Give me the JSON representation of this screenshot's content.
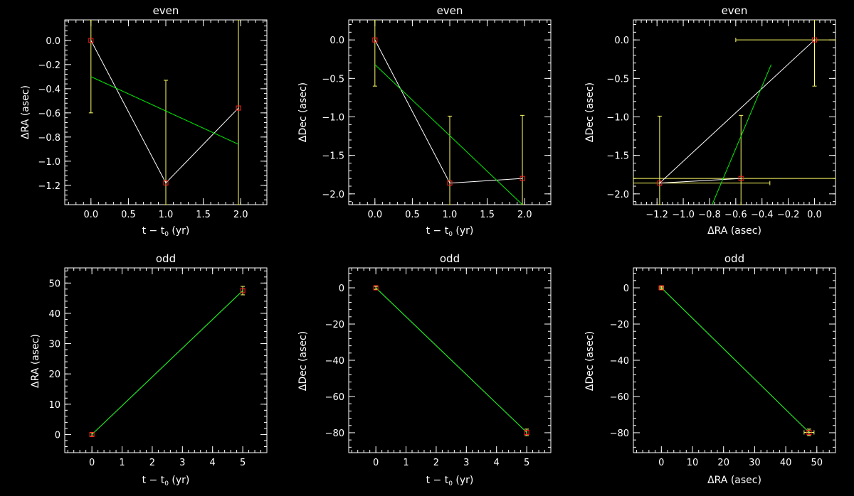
{
  "chart_data": [
    {
      "type": "line",
      "title": "even",
      "xlabel": "t − t",
      "xlabel_sub": "0",
      "xlabel_unit": " (yr)",
      "ylabel": "ΔRA (asec)",
      "xlim": [
        -0.35,
        2.35
      ],
      "ylim": [
        -1.36,
        0.17
      ],
      "xticks": [
        0.0,
        0.5,
        1.0,
        1.5,
        2.0
      ],
      "xticklabels": [
        "0.0",
        "0.5",
        "1.0",
        "1.5",
        "2.0"
      ],
      "yticks": [
        -1.2,
        -1.0,
        -0.8,
        -0.6,
        -0.4,
        -0.2,
        0.0
      ],
      "yticklabels": [
        "−1.2",
        "−1.0",
        "−0.8",
        "−0.6",
        "−0.4",
        "−0.2",
        "0.0"
      ],
      "points": {
        "x": [
          0.0,
          1.0,
          1.97
        ],
        "y": [
          0.0,
          -1.18,
          -0.56
        ],
        "color": "#ff2020"
      },
      "errorbars": [
        {
          "x": 0.0,
          "ylo": -0.6,
          "yhi": 0.17
        },
        {
          "x": 1.0,
          "ylo": -1.36,
          "yhi": -0.33
        },
        {
          "x": 1.97,
          "ylo": -1.36,
          "yhi": 0.17
        }
      ],
      "xerrorbars": [],
      "data_line": {
        "x": [
          0.0,
          1.0,
          1.97
        ],
        "y": [
          0.0,
          -1.18,
          -0.56
        ],
        "color": "#ffffff"
      },
      "fit_line": {
        "x": [
          0.0,
          1.97
        ],
        "y": [
          -0.3,
          -0.86
        ],
        "color": "#00ee00"
      },
      "extra_lines": []
    },
    {
      "type": "line",
      "title": "even",
      "xlabel": "t − t",
      "xlabel_sub": "0",
      "xlabel_unit": " (yr)",
      "ylabel": "ΔDec (asec)",
      "xlim": [
        -0.35,
        2.35
      ],
      "ylim": [
        -2.14,
        0.26
      ],
      "xticks": [
        0.0,
        0.5,
        1.0,
        1.5,
        2.0
      ],
      "xticklabels": [
        "0.0",
        "0.5",
        "1.0",
        "1.5",
        "2.0"
      ],
      "yticks": [
        -2.0,
        -1.5,
        -1.0,
        -0.5,
        0.0
      ],
      "yticklabels": [
        "−2.0",
        "−1.5",
        "−1.0",
        "−0.5",
        "0.0"
      ],
      "points": {
        "x": [
          0.0,
          1.0,
          1.97
        ],
        "y": [
          0.0,
          -1.86,
          -1.8
        ],
        "color": "#ff2020"
      },
      "errorbars": [
        {
          "x": 0.0,
          "ylo": -0.6,
          "yhi": 0.26
        },
        {
          "x": 1.0,
          "ylo": -2.14,
          "yhi": -0.99
        },
        {
          "x": 1.97,
          "ylo": -2.14,
          "yhi": -0.98
        }
      ],
      "xerrorbars": [],
      "data_line": {
        "x": [
          0.0,
          1.0,
          1.97
        ],
        "y": [
          0.0,
          -1.86,
          -1.8
        ],
        "color": "#ffffff"
      },
      "fit_line": {
        "x": [
          0.0,
          1.97
        ],
        "y": [
          -0.32,
          -2.14
        ],
        "color": "#00ee00"
      },
      "extra_lines": []
    },
    {
      "type": "scatter",
      "title": "even",
      "xlabel": "ΔRA (asec)",
      "xlabel_sub": "",
      "xlabel_unit": "",
      "ylabel": "ΔDec (asec)",
      "xlim": [
        -1.38,
        0.16
      ],
      "ylim": [
        -2.14,
        0.26
      ],
      "xticks": [
        -1.2,
        -1.0,
        -0.8,
        -0.6,
        -0.4,
        -0.2,
        0.0
      ],
      "xticklabels": [
        "−1.2",
        "−1.0",
        "−0.8",
        "−0.6",
        "−0.4",
        "−0.2",
        "0.0"
      ],
      "yticks": [
        -2.0,
        -1.5,
        -1.0,
        -0.5,
        0.0
      ],
      "yticklabels": [
        "−2.0",
        "−1.5",
        "−1.0",
        "−0.5",
        "0.0"
      ],
      "points": {
        "x": [
          0.0,
          -1.18,
          -0.56
        ],
        "y": [
          0.0,
          -1.86,
          -1.8
        ],
        "color": "#ff2020"
      },
      "errorbars": [
        {
          "x": 0.0,
          "ylo": -0.6,
          "yhi": 0.26
        },
        {
          "x": -1.18,
          "ylo": -2.14,
          "yhi": -0.99
        },
        {
          "x": -0.56,
          "ylo": -2.14,
          "yhi": -0.98
        }
      ],
      "xerrorbars": [
        {
          "y": 0.0,
          "xlo": -0.6,
          "xhi": 0.16
        },
        {
          "y": -1.86,
          "xlo": -1.38,
          "xhi": -0.34
        },
        {
          "y": -1.8,
          "xlo": -1.38,
          "xhi": 0.16
        }
      ],
      "data_line": {
        "x": [
          0.0,
          -1.18,
          -0.56
        ],
        "y": [
          0.0,
          -1.86,
          -1.8
        ],
        "color": "#ffffff"
      },
      "fit_line": {
        "x": [
          -0.78,
          -0.33
        ],
        "y": [
          -2.14,
          -0.32
        ],
        "color": "#00ee00"
      },
      "extra_lines": []
    },
    {
      "type": "line",
      "title": "odd",
      "xlabel": "t − t",
      "xlabel_sub": "0",
      "xlabel_unit": " (yr)",
      "ylabel": "ΔRA (asec)",
      "xlim": [
        -0.9,
        5.8
      ],
      "ylim": [
        -6,
        55
      ],
      "xticks": [
        0,
        1,
        2,
        3,
        4,
        5
      ],
      "xticklabels": [
        "0",
        "1",
        "2",
        "3",
        "4",
        "5"
      ],
      "yticks": [
        0,
        10,
        20,
        30,
        40,
        50
      ],
      "yticklabels": [
        "0",
        "10",
        "20",
        "30",
        "40",
        "50"
      ],
      "points": {
        "x": [
          0,
          5
        ],
        "y": [
          0,
          47.5
        ],
        "color": "#ff2020"
      },
      "errorbars": [
        {
          "x": 0,
          "ylo": -0.6,
          "yhi": 0.6
        },
        {
          "x": 5,
          "ylo": 46.1,
          "yhi": 48.9
        }
      ],
      "xerrorbars": [],
      "data_line": {
        "x": [
          0,
          5
        ],
        "y": [
          0,
          47.5
        ],
        "color": "#ffffff"
      },
      "fit_line": {
        "x": [
          0,
          5
        ],
        "y": [
          0,
          47.5
        ],
        "color": "#00ee00"
      },
      "extra_lines": []
    },
    {
      "type": "line",
      "title": "odd",
      "xlabel": "t − t",
      "xlabel_sub": "0",
      "xlabel_unit": " (yr)",
      "ylabel": "ΔDec (asec)",
      "xlim": [
        -0.9,
        5.8
      ],
      "ylim": [
        -91,
        11
      ],
      "xticks": [
        0,
        1,
        2,
        3,
        4,
        5
      ],
      "xticklabels": [
        "0",
        "1",
        "2",
        "3",
        "4",
        "5"
      ],
      "yticks": [
        -80,
        -60,
        -40,
        -20,
        0
      ],
      "yticklabels": [
        "−80",
        "−60",
        "−40",
        "−20",
        "0"
      ],
      "points": {
        "x": [
          0,
          5
        ],
        "y": [
          0,
          -79.8
        ],
        "color": "#ff2020"
      },
      "errorbars": [
        {
          "x": 0,
          "ylo": -0.8,
          "yhi": 0.8
        },
        {
          "x": 5,
          "ylo": -81.6,
          "yhi": -78
        }
      ],
      "xerrorbars": [],
      "data_line": {
        "x": [
          0,
          5
        ],
        "y": [
          0,
          -79.8
        ],
        "color": "#ffffff"
      },
      "fit_line": {
        "x": [
          0,
          5
        ],
        "y": [
          0,
          -79.8
        ],
        "color": "#00ee00"
      },
      "extra_lines": []
    },
    {
      "type": "scatter",
      "title": "odd",
      "xlabel": "ΔRA (asec)",
      "xlabel_sub": "",
      "xlabel_unit": "",
      "ylabel": "ΔDec (asec)",
      "xlim": [
        -9,
        56
      ],
      "ylim": [
        -91,
        11
      ],
      "xticks": [
        0,
        10,
        20,
        30,
        40,
        50
      ],
      "xticklabels": [
        "0",
        "10",
        "20",
        "30",
        "40",
        "50"
      ],
      "yticks": [
        -80,
        -60,
        -40,
        -20,
        0
      ],
      "yticklabels": [
        "−80",
        "−60",
        "−40",
        "−20",
        "0"
      ],
      "points": {
        "x": [
          0,
          47.5
        ],
        "y": [
          0,
          -79.8
        ],
        "color": "#ff2020"
      },
      "errorbars": [
        {
          "x": 0,
          "ylo": -0.8,
          "yhi": 0.8
        },
        {
          "x": 47.5,
          "ylo": -81.6,
          "yhi": -78
        }
      ],
      "xerrorbars": [
        {
          "y": 0,
          "xlo": -0.7,
          "xhi": 0.7
        },
        {
          "y": -79.8,
          "xlo": 45.9,
          "xhi": 49.1
        }
      ],
      "data_line": {
        "x": [
          0,
          47.5
        ],
        "y": [
          0,
          -79.8
        ],
        "color": "#ffffff"
      },
      "fit_line": {
        "x": [
          0,
          47.5
        ],
        "y": [
          0,
          -79.8
        ],
        "color": "#00ee00"
      },
      "extra_lines": []
    }
  ],
  "colors": {
    "background": "#000000",
    "axes": "#ffffff",
    "errorbar": "#ffff66",
    "point": "#ff2020",
    "data_line": "#ffffff",
    "fit_line": "#00ee00"
  }
}
